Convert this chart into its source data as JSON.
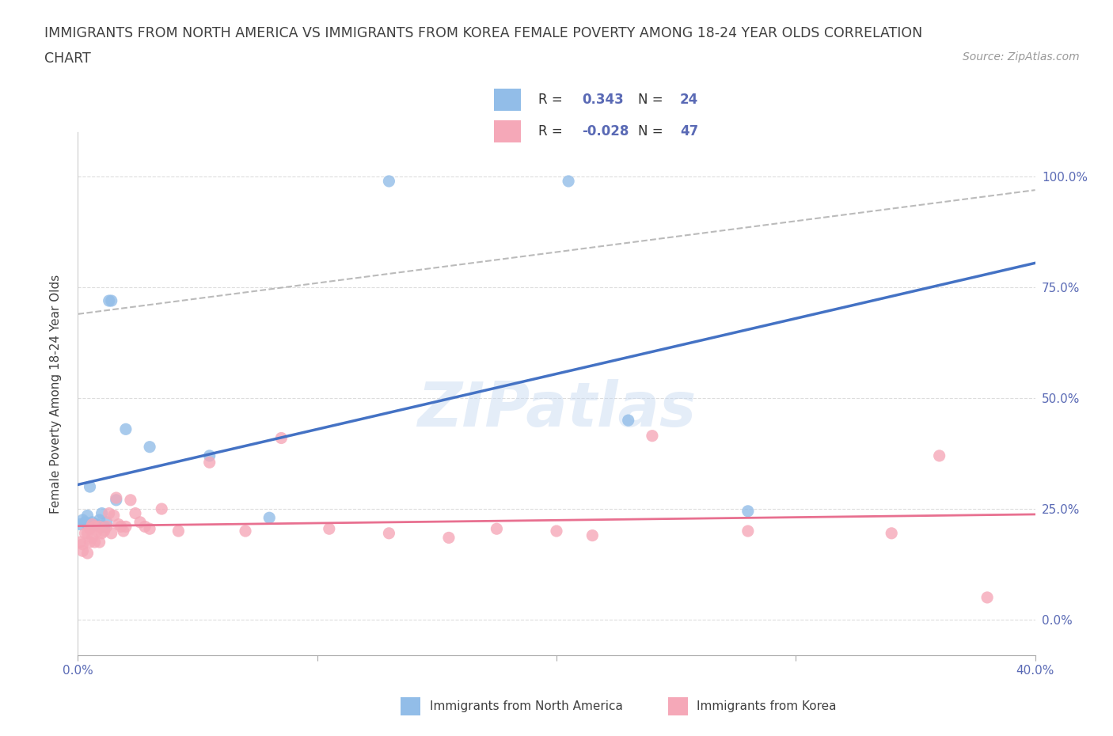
{
  "title_line1": "IMMIGRANTS FROM NORTH AMERICA VS IMMIGRANTS FROM KOREA FEMALE POVERTY AMONG 18-24 YEAR OLDS CORRELATION",
  "title_line2": "CHART",
  "source_text": "Source: ZipAtlas.com",
  "ylabel": "Female Poverty Among 18-24 Year Olds",
  "xlim": [
    0.0,
    0.4
  ],
  "ylim": [
    -0.08,
    1.1
  ],
  "R_blue": 0.343,
  "N_blue": 24,
  "R_pink": -0.028,
  "N_pink": 47,
  "blue_scatter_x": [
    0.001,
    0.002,
    0.003,
    0.004,
    0.005,
    0.005,
    0.006,
    0.007,
    0.008,
    0.009,
    0.01,
    0.011,
    0.012,
    0.013,
    0.014,
    0.016,
    0.02,
    0.03,
    0.055,
    0.08,
    0.13,
    0.205,
    0.23,
    0.28
  ],
  "blue_scatter_y": [
    0.215,
    0.225,
    0.22,
    0.235,
    0.215,
    0.3,
    0.22,
    0.215,
    0.215,
    0.225,
    0.24,
    0.21,
    0.22,
    0.72,
    0.72,
    0.27,
    0.43,
    0.39,
    0.37,
    0.23,
    0.99,
    0.99,
    0.45,
    0.245
  ],
  "pink_scatter_x": [
    0.001,
    0.002,
    0.002,
    0.003,
    0.004,
    0.004,
    0.005,
    0.005,
    0.006,
    0.006,
    0.007,
    0.007,
    0.008,
    0.009,
    0.009,
    0.01,
    0.011,
    0.012,
    0.013,
    0.014,
    0.015,
    0.016,
    0.017,
    0.018,
    0.019,
    0.02,
    0.022,
    0.024,
    0.026,
    0.028,
    0.03,
    0.035,
    0.042,
    0.055,
    0.07,
    0.085,
    0.105,
    0.13,
    0.155,
    0.175,
    0.2,
    0.215,
    0.24,
    0.28,
    0.34,
    0.36,
    0.38
  ],
  "pink_scatter_y": [
    0.175,
    0.155,
    0.17,
    0.195,
    0.195,
    0.15,
    0.205,
    0.175,
    0.185,
    0.215,
    0.21,
    0.175,
    0.2,
    0.175,
    0.21,
    0.195,
    0.2,
    0.21,
    0.24,
    0.195,
    0.235,
    0.275,
    0.215,
    0.21,
    0.2,
    0.21,
    0.27,
    0.24,
    0.22,
    0.21,
    0.205,
    0.25,
    0.2,
    0.355,
    0.2,
    0.41,
    0.205,
    0.195,
    0.185,
    0.205,
    0.2,
    0.19,
    0.415,
    0.2,
    0.195,
    0.37,
    0.05
  ],
  "blue_color": "#92bde8",
  "pink_color": "#f5a8b8",
  "trendline_blue_color": "#4472c4",
  "trendline_pink_color": "#e87090",
  "trendline_dashed_color": "#aaaaaa",
  "watermark_text": "ZIPatlas",
  "background_color": "#ffffff",
  "grid_color": "#dddddd",
  "label_color": "#5a6ab5",
  "title_color": "#404040",
  "legend_label_color": "#5a6ab5"
}
